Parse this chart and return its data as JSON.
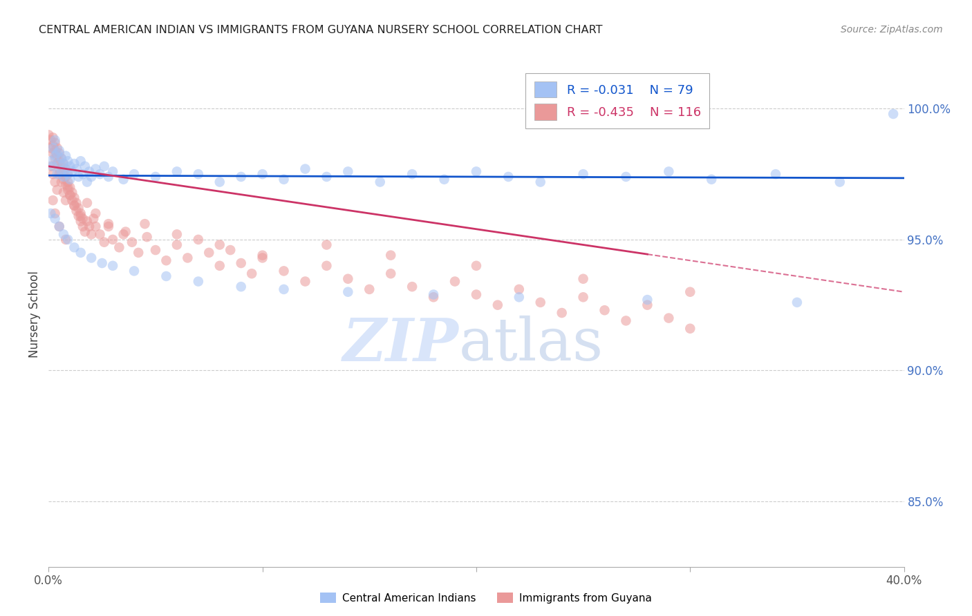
{
  "title": "CENTRAL AMERICAN INDIAN VS IMMIGRANTS FROM GUYANA NURSERY SCHOOL CORRELATION CHART",
  "source": "Source: ZipAtlas.com",
  "ylabel": "Nursery School",
  "yticks": [
    "100.0%",
    "95.0%",
    "90.0%",
    "85.0%"
  ],
  "ytick_vals": [
    1.0,
    0.95,
    0.9,
    0.85
  ],
  "xlim": [
    0.0,
    0.4
  ],
  "ylim": [
    0.825,
    1.018
  ],
  "legend_blue_label": "Central American Indians",
  "legend_pink_label": "Immigrants from Guyana",
  "legend_r_blue": "R = -0.031",
  "legend_n_blue": "N = 79",
  "legend_r_pink": "R = -0.435",
  "legend_n_pink": "N = 116",
  "blue_color": "#a4c2f4",
  "pink_color": "#ea9999",
  "blue_line_color": "#1155cc",
  "pink_line_color": "#cc3366",
  "grid_color": "#cccccc",
  "watermark_zip_color": "#c9daf8",
  "watermark_atlas_color": "#b4c7e7",
  "blue_x": [
    0.001,
    0.002,
    0.002,
    0.003,
    0.003,
    0.004,
    0.004,
    0.005,
    0.005,
    0.006,
    0.006,
    0.007,
    0.007,
    0.008,
    0.008,
    0.009,
    0.009,
    0.01,
    0.01,
    0.011,
    0.012,
    0.013,
    0.014,
    0.015,
    0.016,
    0.017,
    0.018,
    0.019,
    0.02,
    0.022,
    0.024,
    0.026,
    0.028,
    0.03,
    0.035,
    0.04,
    0.05,
    0.06,
    0.07,
    0.08,
    0.09,
    0.1,
    0.11,
    0.12,
    0.13,
    0.14,
    0.155,
    0.17,
    0.185,
    0.2,
    0.215,
    0.23,
    0.25,
    0.27,
    0.29,
    0.31,
    0.34,
    0.37,
    0.395,
    0.001,
    0.003,
    0.005,
    0.007,
    0.009,
    0.012,
    0.015,
    0.02,
    0.025,
    0.03,
    0.04,
    0.055,
    0.07,
    0.09,
    0.11,
    0.14,
    0.18,
    0.22,
    0.28,
    0.35
  ],
  "blue_y": [
    0.98,
    0.978,
    0.985,
    0.982,
    0.988,
    0.975,
    0.983,
    0.979,
    0.984,
    0.976,
    0.981,
    0.974,
    0.979,
    0.977,
    0.982,
    0.975,
    0.98,
    0.973,
    0.978,
    0.976,
    0.979,
    0.977,
    0.974,
    0.98,
    0.975,
    0.978,
    0.972,
    0.976,
    0.974,
    0.977,
    0.975,
    0.978,
    0.974,
    0.976,
    0.973,
    0.975,
    0.974,
    0.976,
    0.975,
    0.972,
    0.974,
    0.975,
    0.973,
    0.977,
    0.974,
    0.976,
    0.972,
    0.975,
    0.973,
    0.976,
    0.974,
    0.972,
    0.975,
    0.974,
    0.976,
    0.973,
    0.975,
    0.972,
    0.998,
    0.96,
    0.958,
    0.955,
    0.952,
    0.95,
    0.947,
    0.945,
    0.943,
    0.941,
    0.94,
    0.938,
    0.936,
    0.934,
    0.932,
    0.931,
    0.93,
    0.929,
    0.928,
    0.927,
    0.926
  ],
  "pink_x": [
    0.0,
    0.001,
    0.001,
    0.002,
    0.002,
    0.002,
    0.003,
    0.003,
    0.003,
    0.004,
    0.004,
    0.004,
    0.005,
    0.005,
    0.005,
    0.006,
    0.006,
    0.006,
    0.007,
    0.007,
    0.007,
    0.008,
    0.008,
    0.008,
    0.009,
    0.009,
    0.009,
    0.01,
    0.01,
    0.011,
    0.011,
    0.012,
    0.012,
    0.013,
    0.013,
    0.014,
    0.014,
    0.015,
    0.015,
    0.016,
    0.016,
    0.017,
    0.018,
    0.019,
    0.02,
    0.021,
    0.022,
    0.024,
    0.026,
    0.028,
    0.03,
    0.033,
    0.036,
    0.039,
    0.042,
    0.046,
    0.05,
    0.055,
    0.06,
    0.065,
    0.07,
    0.075,
    0.08,
    0.085,
    0.09,
    0.095,
    0.1,
    0.11,
    0.12,
    0.13,
    0.14,
    0.15,
    0.16,
    0.17,
    0.18,
    0.19,
    0.2,
    0.21,
    0.22,
    0.23,
    0.24,
    0.25,
    0.26,
    0.27,
    0.28,
    0.29,
    0.3,
    0.001,
    0.002,
    0.003,
    0.004,
    0.005,
    0.006,
    0.007,
    0.008,
    0.009,
    0.01,
    0.012,
    0.015,
    0.018,
    0.022,
    0.028,
    0.035,
    0.045,
    0.06,
    0.08,
    0.1,
    0.13,
    0.16,
    0.2,
    0.25,
    0.3,
    0.002,
    0.003,
    0.005,
    0.008
  ],
  "pink_y": [
    0.99,
    0.985,
    0.988,
    0.983,
    0.986,
    0.989,
    0.981,
    0.984,
    0.987,
    0.979,
    0.982,
    0.985,
    0.977,
    0.98,
    0.983,
    0.975,
    0.978,
    0.981,
    0.973,
    0.976,
    0.979,
    0.971,
    0.974,
    0.977,
    0.969,
    0.972,
    0.975,
    0.967,
    0.97,
    0.965,
    0.968,
    0.963,
    0.966,
    0.961,
    0.964,
    0.959,
    0.962,
    0.957,
    0.96,
    0.955,
    0.958,
    0.953,
    0.957,
    0.955,
    0.952,
    0.958,
    0.955,
    0.952,
    0.949,
    0.955,
    0.95,
    0.947,
    0.953,
    0.949,
    0.945,
    0.951,
    0.946,
    0.942,
    0.948,
    0.943,
    0.95,
    0.945,
    0.94,
    0.946,
    0.941,
    0.937,
    0.943,
    0.938,
    0.934,
    0.94,
    0.935,
    0.931,
    0.937,
    0.932,
    0.928,
    0.934,
    0.929,
    0.925,
    0.931,
    0.926,
    0.922,
    0.928,
    0.923,
    0.919,
    0.925,
    0.92,
    0.916,
    0.978,
    0.975,
    0.972,
    0.969,
    0.975,
    0.972,
    0.968,
    0.965,
    0.97,
    0.967,
    0.963,
    0.959,
    0.964,
    0.96,
    0.956,
    0.952,
    0.956,
    0.952,
    0.948,
    0.944,
    0.948,
    0.944,
    0.94,
    0.935,
    0.93,
    0.965,
    0.96,
    0.955,
    0.95
  ]
}
